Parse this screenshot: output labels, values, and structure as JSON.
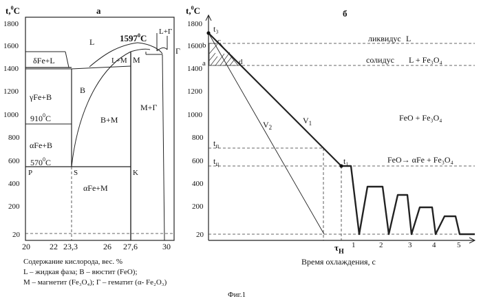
{
  "figure_caption": "Фиг.1",
  "left": {
    "panel_label": "а",
    "y_axis_title_main": "t,",
    "y_axis_title_sup": "0",
    "y_axis_title_unit": "C",
    "y_ticks": [
      "1800",
      "1600",
      "1400",
      "1200",
      "1000",
      "800",
      "600",
      "400",
      "200",
      "20"
    ],
    "x_ticks": [
      "20",
      "22",
      "23,3",
      "26",
      "27,6",
      "30"
    ],
    "regions": {
      "L": "L",
      "delta_fe_l": "δFe+L",
      "l_m": "L+M",
      "m": "M",
      "l_gamma": "L+Г",
      "gamma": "Г",
      "gamma_fe_b": "γFe+B",
      "b": "B",
      "b_m": "B+M",
      "m_gamma": "M+Г",
      "alpha_fe_b": "αFe+B",
      "alpha_fe_m": "αFe+M"
    },
    "temps": {
      "t1597": "1597",
      "t910": "910",
      "t570": "570",
      "sup": "0",
      "unit": "C"
    },
    "points": {
      "p": "P",
      "s": "S",
      "k": "K"
    },
    "legend": [
      "Содержание кислорода, вес. %",
      "L – жидкая фаза; B – вюстит (FeO);",
      "M – магнетит (Fe₃O₄); Г – гематит (α- Fe₂O₃)"
    ]
  },
  "right": {
    "panel_label": "б",
    "y_axis_title_main": "t,",
    "y_axis_title_sup": "0",
    "y_axis_title_unit": "C",
    "y_ticks": [
      "1800",
      "1600",
      "1400",
      "1200",
      "1000",
      "800",
      "600",
      "400",
      "200",
      "20"
    ],
    "x_ticks": [
      "1",
      "2",
      "3",
      "4",
      "5"
    ],
    "x_title": "Время охлаждения, с",
    "tau_main": "τ",
    "tau_sub": "Н",
    "labels": {
      "liquidus": "ликвидус",
      "liquidus_phase": "L",
      "solidus": "солидус",
      "solidus_phase": "L + Fe₃O₄",
      "feo_fe3o4": "FeO + Fe₃O₄",
      "feo_reaction": "FeO→ αFe + Fe₃O₄",
      "t3": "t₃",
      "b": "b",
      "c": "c",
      "a": "a",
      "d": "d",
      "tp_main": "t",
      "tp_sub": "п",
      "tc_main": "t",
      "tc_sub": "ц",
      "t1": "t₁",
      "v1_main": "V",
      "v1_sub": "1",
      "v2_main": "V",
      "v2_sub": "2"
    }
  }
}
